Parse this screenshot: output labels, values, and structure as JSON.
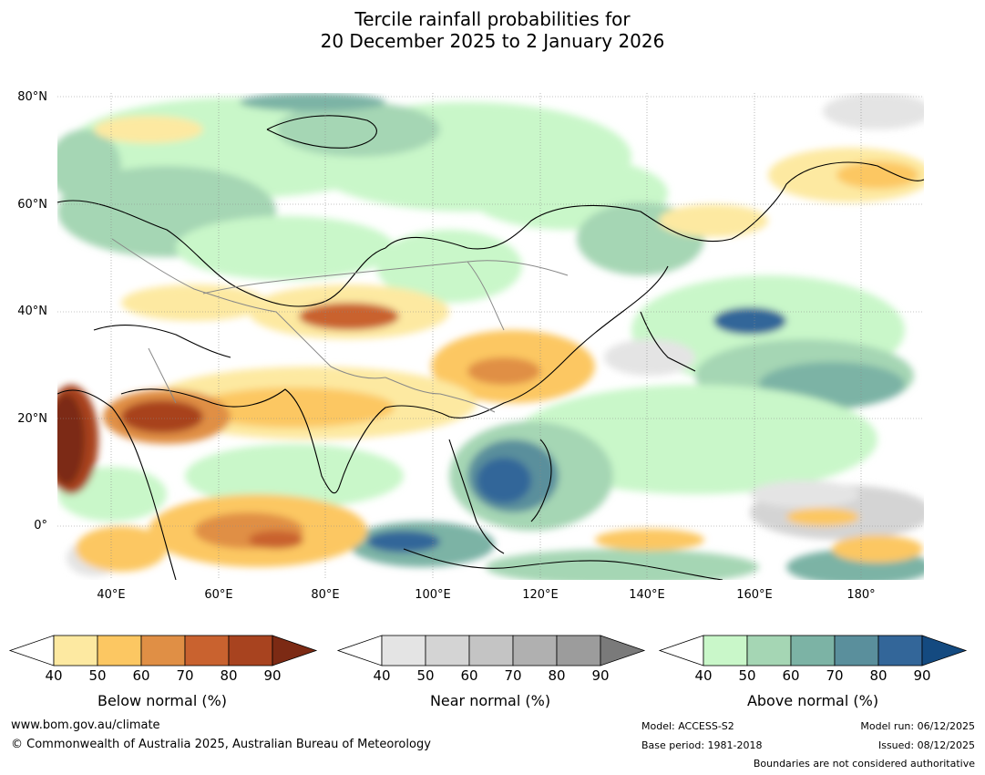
{
  "title": {
    "line1": "Tercile rainfall probabilities for",
    "line2": "20 December 2025 to 2 January 2026"
  },
  "map": {
    "lat_labels": [
      "80°N",
      "60°N",
      "40°N",
      "20°N",
      "0°"
    ],
    "lon_labels": [
      "40°E",
      "60°E",
      "80°E",
      "100°E",
      "120°E",
      "140°E",
      "160°E",
      "180°"
    ]
  },
  "legends": [
    {
      "title": "Below normal (%)",
      "ticks": [
        "40",
        "50",
        "60",
        "70",
        "80",
        "90"
      ],
      "colors": [
        "#ffffff",
        "#fde9a1",
        "#fcc762",
        "#e08f45",
        "#c9622f",
        "#a8431f",
        "#7c2a14"
      ]
    },
    {
      "title": "Near normal (%)",
      "ticks": [
        "40",
        "50",
        "60",
        "70",
        "80",
        "90"
      ],
      "colors": [
        "#ffffff",
        "#e4e4e4",
        "#d4d4d4",
        "#c4c4c4",
        "#b0b0b0",
        "#9c9c9c",
        "#7a7a7a"
      ]
    },
    {
      "title": "Above normal (%)",
      "ticks": [
        "40",
        "50",
        "60",
        "70",
        "80",
        "90"
      ],
      "colors": [
        "#ffffff",
        "#c9f7c9",
        "#a5d6b4",
        "#7cb3a5",
        "#5a8f9c",
        "#336699",
        "#144a80"
      ]
    }
  ],
  "footer": {
    "website": "www.bom.gov.au/climate",
    "copyright": "© Commonwealth of Australia 2025, Australian Bureau of Meteorology",
    "model": "Model: ACCESS-S2",
    "base_period": "Base period: 1981-2018",
    "model_run": "Model run: 06/12/2025",
    "issued": "Issued: 08/12/2025",
    "boundaries": "Boundaries are not considered authoritative"
  }
}
